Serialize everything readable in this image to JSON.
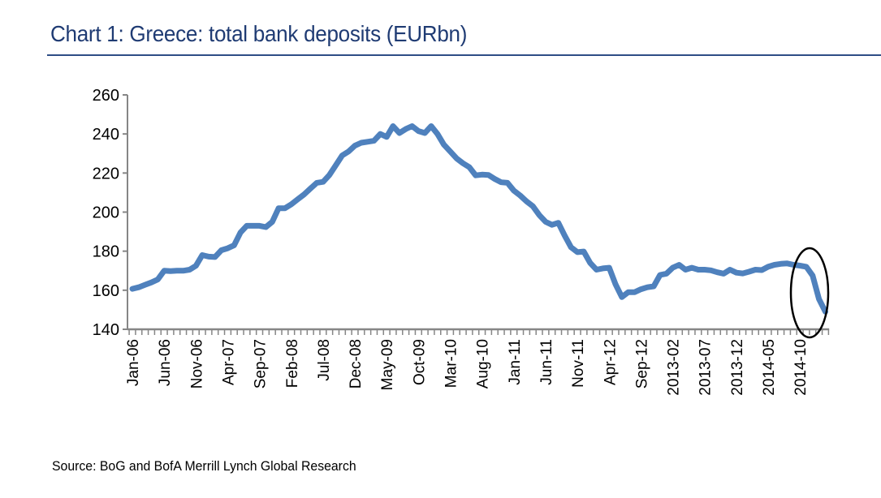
{
  "chart_data": {
    "type": "line",
    "title": "Chart 1: Greece: total bank deposits (EURbn)",
    "source": "Source: BoG and BofA Merrill Lynch Global Research",
    "xlabel": "",
    "ylabel": "",
    "ylim": [
      140,
      260
    ],
    "y_ticks": [
      140,
      160,
      180,
      200,
      220,
      240,
      260
    ],
    "x_tick_labels": [
      "Jan-06",
      "Jun-06",
      "Nov-06",
      "Apr-07",
      "Sep-07",
      "Feb-08",
      "Jul-08",
      "Dec-08",
      "May-09",
      "Oct-09",
      "Mar-10",
      "Aug-10",
      "Jan-11",
      "Jun-11",
      "Nov-11",
      "Apr-12",
      "Sep-12",
      "2013-02",
      "2013-07",
      "2013-12",
      "2014-05",
      "2014-10"
    ],
    "x_tick_every_months": 5,
    "grid": false,
    "line_color": "#4F81BD",
    "annotation": "ellipse highlighting late-2014/early-2015 drop",
    "x": [
      "2006-01",
      "2006-02",
      "2006-03",
      "2006-04",
      "2006-05",
      "2006-06",
      "2006-07",
      "2006-08",
      "2006-09",
      "2006-10",
      "2006-11",
      "2006-12",
      "2007-01",
      "2007-02",
      "2007-03",
      "2007-04",
      "2007-05",
      "2007-06",
      "2007-07",
      "2007-08",
      "2007-09",
      "2007-10",
      "2007-11",
      "2007-12",
      "2008-01",
      "2008-02",
      "2008-03",
      "2008-04",
      "2008-05",
      "2008-06",
      "2008-07",
      "2008-08",
      "2008-09",
      "2008-10",
      "2008-11",
      "2008-12",
      "2009-01",
      "2009-02",
      "2009-03",
      "2009-04",
      "2009-05",
      "2009-06",
      "2009-07",
      "2009-08",
      "2009-09",
      "2009-10",
      "2009-11",
      "2009-12",
      "2010-01",
      "2010-02",
      "2010-03",
      "2010-04",
      "2010-05",
      "2010-06",
      "2010-07",
      "2010-08",
      "2010-09",
      "2010-10",
      "2010-11",
      "2010-12",
      "2011-01",
      "2011-02",
      "2011-03",
      "2011-04",
      "2011-05",
      "2011-06",
      "2011-07",
      "2011-08",
      "2011-09",
      "2011-10",
      "2011-11",
      "2011-12",
      "2012-01",
      "2012-02",
      "2012-03",
      "2012-04",
      "2012-05",
      "2012-06",
      "2012-07",
      "2012-08",
      "2012-09",
      "2012-10",
      "2012-11",
      "2012-12",
      "2013-01",
      "2013-02",
      "2013-03",
      "2013-04",
      "2013-05",
      "2013-06",
      "2013-07",
      "2013-08",
      "2013-09",
      "2013-10",
      "2013-11",
      "2013-12",
      "2014-01",
      "2014-02",
      "2014-03",
      "2014-04",
      "2014-05",
      "2014-06",
      "2014-07",
      "2014-08",
      "2014-09",
      "2014-10",
      "2014-11",
      "2014-12",
      "2015-01",
      "2015-02"
    ],
    "series": [
      {
        "values": [
          160.7,
          161.5,
          162.8,
          164,
          165.5,
          170,
          169.8,
          170,
          170,
          170.5,
          172.5,
          178,
          177.2,
          177,
          180.5,
          181.5,
          183,
          189.5,
          193,
          193,
          193,
          192.3,
          195,
          202,
          202,
          204,
          206.5,
          209,
          212,
          215,
          215.5,
          219,
          224,
          229,
          231,
          234,
          235.5,
          236,
          236.5,
          240,
          238.5,
          244,
          240.5,
          242.5,
          244,
          241.5,
          240.5,
          244,
          240,
          234.5,
          231,
          227.5,
          225,
          223,
          218.8,
          219.2,
          219,
          217,
          215.3,
          215,
          211,
          208.5,
          205.5,
          203,
          198.5,
          195,
          193.5,
          194.5,
          188,
          182,
          179.5,
          179.8,
          174,
          170.5,
          171.2,
          171.5,
          163,
          156.5,
          159,
          159,
          160.5,
          161.5,
          162,
          167.8,
          168.5,
          171.5,
          173,
          170.5,
          171.5,
          170.5,
          170.5,
          170.2,
          169.2,
          168.5,
          170.5,
          169,
          168.6,
          169.5,
          170.5,
          170.3,
          172,
          173,
          173.5,
          173.7,
          173,
          172.6,
          172,
          167.5,
          155.5,
          149
        ]
      }
    ]
  }
}
